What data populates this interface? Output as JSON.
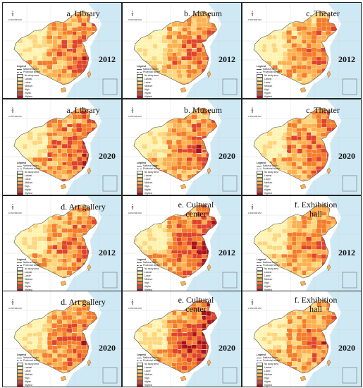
{
  "colors": {
    "sea": "#cfe9f4",
    "land": "#f4f4f4",
    "border": "#555555",
    "levels": [
      "#fff3b0",
      "#fdd77e",
      "#fdb04f",
      "#f47c2a",
      "#e0432b",
      "#a8131c"
    ]
  },
  "map_common": {
    "north_label": "N",
    "scale_label": "0  250  500 KM",
    "legend_title": "Legend",
    "legend_items": [
      {
        "label": "National border",
        "kind": "line"
      },
      {
        "label": "Provincial border",
        "kind": "line"
      },
      {
        "label": "No study area",
        "kind": "swatch",
        "level": -1
      },
      {
        "label": "Lowest",
        "kind": "swatch",
        "level": 0
      },
      {
        "label": "Lower",
        "kind": "swatch",
        "level": 1
      },
      {
        "label": "Medium",
        "kind": "swatch",
        "level": 2
      },
      {
        "label": "High",
        "kind": "swatch",
        "level": 3
      },
      {
        "label": "Higher",
        "kind": "swatch",
        "level": 4
      },
      {
        "label": "Highest",
        "kind": "swatch",
        "level": 5
      }
    ]
  },
  "panels": [
    {
      "title": "a. Library",
      "year": "2012",
      "intensity": 0.55
    },
    {
      "title": "b. Museum",
      "year": "2012",
      "intensity": 0.5
    },
    {
      "title": "c. Theater",
      "year": "2012",
      "intensity": 0.45
    },
    {
      "title": "a. Library",
      "year": "2020",
      "intensity": 0.65
    },
    {
      "title": "b. Museum",
      "year": "2020",
      "intensity": 0.6
    },
    {
      "title": "c. Theater",
      "year": "2020",
      "intensity": 0.55
    },
    {
      "title": "d. Art gallery",
      "year": "2012",
      "intensity": 0.5
    },
    {
      "title": "e. Cultural center",
      "year": "2012",
      "intensity": 0.7
    },
    {
      "title": "f. Exhibition hall",
      "year": "2012",
      "intensity": 0.45
    },
    {
      "title": "d. Art gallery",
      "year": "2020",
      "intensity": 0.55
    },
    {
      "title": "e. Cultural center",
      "year": "2020",
      "intensity": 0.8
    },
    {
      "title": "f. Exhibition hall",
      "year": "2020",
      "intensity": 0.5
    }
  ]
}
